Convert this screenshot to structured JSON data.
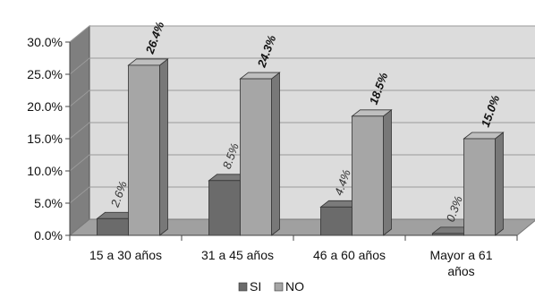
{
  "chart_data": {
    "type": "bar",
    "categories": [
      "15 a 30 años",
      "31 a 45 años",
      "46 a 60 años",
      "Mayor a 61 años"
    ],
    "series": [
      {
        "name": "SI",
        "values": [
          2.6,
          8.5,
          4.4,
          0.3
        ],
        "labels": [
          "2.6%",
          "8.5%",
          "4.4%",
          "0.3%"
        ],
        "color": "#6b6b6b"
      },
      {
        "name": "NO",
        "values": [
          26.4,
          24.3,
          18.5,
          15.0
        ],
        "labels": [
          "26.4%",
          "24.3%",
          "18.5%",
          "15.0%"
        ],
        "color": "#a6a6a6"
      }
    ],
    "yticks": [
      "0.0%",
      "5.0%",
      "10.0%",
      "15.0%",
      "20.0%",
      "25.0%",
      "30.0%"
    ],
    "ylim": [
      0,
      30
    ],
    "style": "3d-clustered-column",
    "wall_color": "#dcdcdc",
    "floor_color": "#a0a0a0",
    "legend_position": "bottom"
  }
}
